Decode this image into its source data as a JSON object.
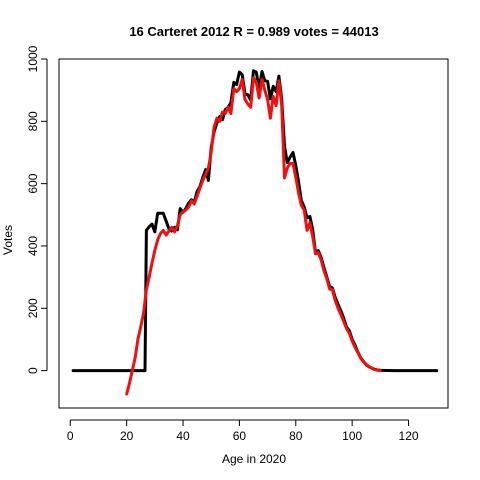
{
  "chart_data": {
    "type": "line",
    "title": "16 Carteret 2012 R = 0.989 votes = 44013",
    "xlabel": "Age in 2020",
    "ylabel": "Votes",
    "xlim": [
      -4,
      134
    ],
    "ylim": [
      -120,
      1000
    ],
    "x_ticks": [
      0,
      20,
      40,
      60,
      80,
      100,
      120
    ],
    "y_ticks": [
      0,
      200,
      400,
      600,
      800,
      1000
    ],
    "grid": false,
    "colors": {
      "actual": "#000000",
      "model": "#ee1111"
    },
    "series": [
      {
        "color": "#000000",
        "points": [
          [
            1,
            0
          ],
          [
            5,
            0
          ],
          [
            10,
            0
          ],
          [
            15,
            0
          ],
          [
            20,
            0
          ],
          [
            24,
            0
          ],
          [
            26,
            0
          ],
          [
            26.5,
            0
          ],
          [
            27,
            450
          ],
          [
            28,
            462
          ],
          [
            29,
            470
          ],
          [
            30,
            445
          ],
          [
            31,
            505
          ],
          [
            32,
            505
          ],
          [
            33,
            505
          ],
          [
            34,
            480
          ],
          [
            35,
            455
          ],
          [
            36,
            448
          ],
          [
            37,
            460
          ],
          [
            38,
            452
          ],
          [
            39,
            520
          ],
          [
            40,
            508
          ],
          [
            41,
            520
          ],
          [
            42,
            538
          ],
          [
            43,
            548
          ],
          [
            44,
            540
          ],
          [
            45,
            575
          ],
          [
            46,
            590
          ],
          [
            47,
            620
          ],
          [
            48,
            645
          ],
          [
            49,
            610
          ],
          [
            50,
            715
          ],
          [
            51,
            765
          ],
          [
            52,
            795
          ],
          [
            53,
            815
          ],
          [
            54,
            805
          ],
          [
            55,
            838
          ],
          [
            56,
            845
          ],
          [
            57,
            860
          ],
          [
            58,
            925
          ],
          [
            59,
            918
          ],
          [
            60,
            958
          ],
          [
            61,
            950
          ],
          [
            62,
            888
          ],
          [
            63,
            885
          ],
          [
            64,
            868
          ],
          [
            65,
            962
          ],
          [
            66,
            958
          ],
          [
            67,
            905
          ],
          [
            68,
            960
          ],
          [
            69,
            930
          ],
          [
            70,
            928
          ],
          [
            71,
            872
          ],
          [
            72,
            912
          ],
          [
            73,
            895
          ],
          [
            74,
            945
          ],
          [
            75,
            870
          ],
          [
            76,
            720
          ],
          [
            77,
            668
          ],
          [
            78,
            685
          ],
          [
            79,
            700
          ],
          [
            80,
            658
          ],
          [
            81,
            605
          ],
          [
            82,
            545
          ],
          [
            83,
            525
          ],
          [
            84,
            490
          ],
          [
            85,
            495
          ],
          [
            86,
            452
          ],
          [
            87,
            380
          ],
          [
            88,
            385
          ],
          [
            89,
            362
          ],
          [
            90,
            330
          ],
          [
            91,
            300
          ],
          [
            92,
            270
          ],
          [
            93,
            265
          ],
          [
            94,
            235
          ],
          [
            95,
            212
          ],
          [
            96,
            192
          ],
          [
            97,
            168
          ],
          [
            98,
            140
          ],
          [
            99,
            128
          ],
          [
            100,
            100
          ],
          [
            101,
            82
          ],
          [
            102,
            60
          ],
          [
            103,
            42
          ],
          [
            104,
            30
          ],
          [
            105,
            18
          ],
          [
            106,
            12
          ],
          [
            107,
            8
          ],
          [
            108,
            4
          ],
          [
            109,
            2
          ],
          [
            110,
            1
          ],
          [
            115,
            0
          ],
          [
            120,
            0
          ],
          [
            125,
            0
          ],
          [
            130,
            0
          ]
        ]
      },
      {
        "color": "#ee1111",
        "points": [
          [
            20,
            -75
          ],
          [
            21,
            -40
          ],
          [
            22,
            0
          ],
          [
            23,
            40
          ],
          [
            24,
            100
          ],
          [
            25,
            140
          ],
          [
            26,
            185
          ],
          [
            27,
            260
          ],
          [
            28,
            300
          ],
          [
            29,
            345
          ],
          [
            30,
            385
          ],
          [
            31,
            420
          ],
          [
            32,
            440
          ],
          [
            33,
            450
          ],
          [
            34,
            435
          ],
          [
            35,
            448
          ],
          [
            36,
            460
          ],
          [
            37,
            445
          ],
          [
            38,
            465
          ],
          [
            39,
            500
          ],
          [
            40,
            510
          ],
          [
            41,
            515
          ],
          [
            42,
            525
          ],
          [
            43,
            545
          ],
          [
            44,
            535
          ],
          [
            45,
            560
          ],
          [
            46,
            585
          ],
          [
            47,
            610
          ],
          [
            48,
            630
          ],
          [
            49,
            650
          ],
          [
            50,
            700
          ],
          [
            51,
            780
          ],
          [
            52,
            810
          ],
          [
            53,
            800
          ],
          [
            54,
            830
          ],
          [
            55,
            825
          ],
          [
            56,
            845
          ],
          [
            57,
            825
          ],
          [
            58,
            905
          ],
          [
            59,
            895
          ],
          [
            60,
            905
          ],
          [
            61,
            935
          ],
          [
            62,
            870
          ],
          [
            63,
            855
          ],
          [
            64,
            845
          ],
          [
            65,
            940
          ],
          [
            66,
            925
          ],
          [
            67,
            875
          ],
          [
            68,
            935
          ],
          [
            69,
            900
          ],
          [
            70,
            870
          ],
          [
            71,
            810
          ],
          [
            72,
            880
          ],
          [
            73,
            850
          ],
          [
            74,
            930
          ],
          [
            75,
            850
          ],
          [
            76,
            618
          ],
          [
            77,
            650
          ],
          [
            78,
            665
          ],
          [
            79,
            665
          ],
          [
            80,
            620
          ],
          [
            81,
            570
          ],
          [
            82,
            530
          ],
          [
            83,
            515
          ],
          [
            84,
            450
          ],
          [
            85,
            475
          ],
          [
            86,
            430
          ],
          [
            87,
            375
          ],
          [
            88,
            378
          ],
          [
            89,
            355
          ],
          [
            90,
            320
          ],
          [
            91,
            295
          ],
          [
            92,
            262
          ],
          [
            93,
            260
          ],
          [
            94,
            225
          ],
          [
            95,
            200
          ],
          [
            96,
            180
          ],
          [
            97,
            158
          ],
          [
            98,
            135
          ],
          [
            99,
            120
          ],
          [
            100,
            95
          ],
          [
            101,
            75
          ],
          [
            102,
            58
          ],
          [
            103,
            40
          ],
          [
            104,
            28
          ],
          [
            105,
            20
          ],
          [
            106,
            13
          ],
          [
            107,
            7
          ],
          [
            108,
            3
          ],
          [
            109,
            1
          ],
          [
            110,
            0
          ]
        ]
      }
    ]
  }
}
